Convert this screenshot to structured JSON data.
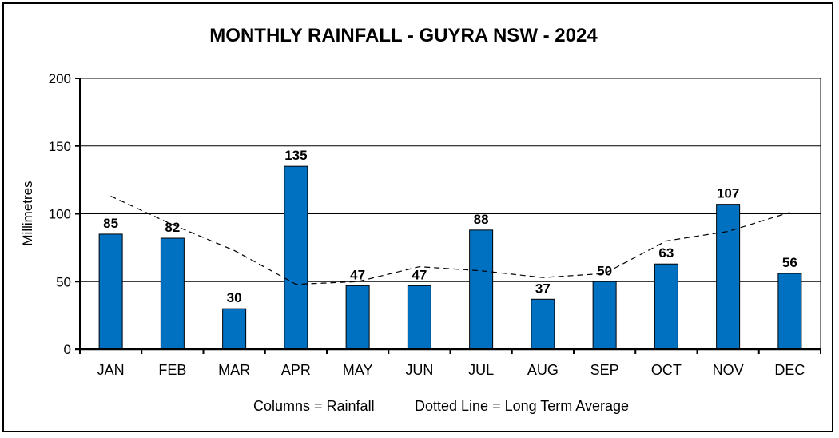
{
  "chart_data": {
    "type": "bar",
    "title": "MONTHLY RAINFALL - GUYRA NSW - 2024",
    "ylabel": "Millimetres",
    "xlabel": "",
    "ylim": [
      0,
      200
    ],
    "yticks": [
      0,
      50,
      100,
      150,
      200
    ],
    "categories": [
      "JAN",
      "FEB",
      "MAR",
      "APR",
      "MAY",
      "JUN",
      "JUL",
      "AUG",
      "SEP",
      "OCT",
      "NOV",
      "DEC"
    ],
    "series": [
      {
        "name": "Rainfall",
        "kind": "bar",
        "color": "#0070C0",
        "values": [
          85,
          82,
          30,
          135,
          47,
          47,
          88,
          37,
          50,
          63,
          107,
          56
        ]
      },
      {
        "name": "Long Term Average",
        "kind": "dashed-line",
        "color": "#000000",
        "values": [
          113,
          92,
          73,
          48,
          50,
          61,
          58,
          53,
          56,
          80,
          87,
          101
        ]
      }
    ],
    "data_labels": [
      "85",
      "82",
      "30",
      "135",
      "47",
      "47",
      "88",
      "37",
      "50",
      "63",
      "107",
      "56"
    ],
    "legend_text": [
      "Columns = Rainfall",
      "Dotted Line = Long Term Average"
    ],
    "grid": "horizontal"
  }
}
